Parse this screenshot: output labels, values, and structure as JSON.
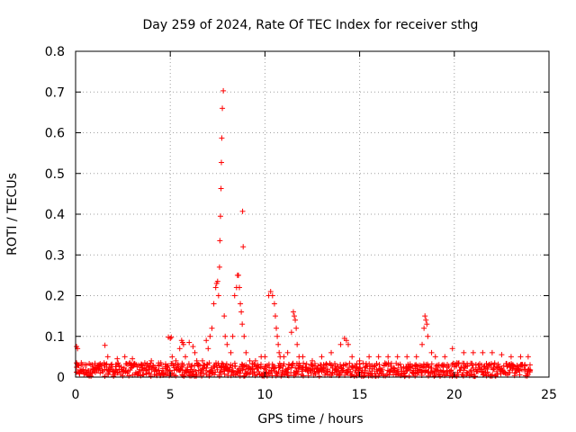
{
  "chart_data": {
    "type": "scatter",
    "title": "Day 259 of 2024, Rate Of TEC Index for receiver sthg",
    "xlabel": "GPS time / hours",
    "ylabel": "ROTI / TECUs",
    "xlim": [
      0,
      25
    ],
    "ylim": [
      0,
      0.8
    ],
    "x_ticks": [
      "0",
      "5",
      "10",
      "15",
      "20",
      "25"
    ],
    "y_ticks": [
      "0",
      "0.1",
      "0.2",
      "0.3",
      "0.4",
      "0.5",
      "0.6",
      "0.7",
      "0.8"
    ],
    "grid": true,
    "marker": "plus",
    "color": "#ff0000",
    "series": [
      {
        "x": [
          0.05,
          0.1,
          0.3,
          0.8,
          1.2,
          1.55,
          1.7,
          2.2,
          2.6,
          3.0,
          3.5,
          4.0,
          4.5,
          4.9,
          5.0,
          5.05,
          5.1,
          5.3,
          5.5,
          5.6,
          5.65,
          5.7,
          5.8,
          6.0,
          6.2,
          6.3,
          6.4,
          6.7,
          6.9,
          7.0,
          7.1,
          7.2,
          7.3,
          7.4,
          7.45,
          7.5,
          7.55,
          7.6,
          7.62,
          7.65,
          7.68,
          7.7,
          7.72,
          7.75,
          7.8,
          7.85,
          7.9,
          8.0,
          8.2,
          8.3,
          8.4,
          8.5,
          8.55,
          8.6,
          8.65,
          8.7,
          8.75,
          8.8,
          8.82,
          8.85,
          8.9,
          9.0,
          9.2,
          9.5,
          9.8,
          10.0,
          10.2,
          10.3,
          10.4,
          10.5,
          10.55,
          10.6,
          10.65,
          10.7,
          10.75,
          10.8,
          11.0,
          11.2,
          11.4,
          11.5,
          11.55,
          11.6,
          11.65,
          11.7,
          11.8,
          12.0,
          12.5,
          13.0,
          13.5,
          14.0,
          14.2,
          14.3,
          14.4,
          14.6,
          15.0,
          15.5,
          16.0,
          16.5,
          17.0,
          17.5,
          18.0,
          18.3,
          18.4,
          18.45,
          18.5,
          18.55,
          18.6,
          18.8,
          19.0,
          19.5,
          19.9,
          20.5,
          21.0,
          21.5,
          22.0,
          22.5,
          23.0,
          23.5,
          23.9,
          24.0
        ],
        "y": [
          0.075,
          0.07,
          0.035,
          0.03,
          0.03,
          0.078,
          0.05,
          0.045,
          0.05,
          0.045,
          0.03,
          0.04,
          0.035,
          0.098,
          0.095,
          0.098,
          0.05,
          0.04,
          0.07,
          0.09,
          0.085,
          0.08,
          0.05,
          0.085,
          0.075,
          0.06,
          0.04,
          0.04,
          0.09,
          0.07,
          0.1,
          0.12,
          0.18,
          0.22,
          0.23,
          0.235,
          0.2,
          0.27,
          0.335,
          0.395,
          0.463,
          0.527,
          0.587,
          0.66,
          0.703,
          0.15,
          0.1,
          0.08,
          0.06,
          0.1,
          0.2,
          0.22,
          0.25,
          0.25,
          0.22,
          0.18,
          0.16,
          0.13,
          0.407,
          0.32,
          0.1,
          0.06,
          0.04,
          0.04,
          0.05,
          0.05,
          0.2,
          0.21,
          0.2,
          0.18,
          0.15,
          0.12,
          0.1,
          0.08,
          0.06,
          0.05,
          0.05,
          0.06,
          0.11,
          0.16,
          0.15,
          0.14,
          0.12,
          0.08,
          0.05,
          0.05,
          0.04,
          0.05,
          0.06,
          0.08,
          0.095,
          0.09,
          0.08,
          0.05,
          0.04,
          0.05,
          0.05,
          0.05,
          0.05,
          0.05,
          0.05,
          0.08,
          0.12,
          0.15,
          0.14,
          0.13,
          0.1,
          0.06,
          0.05,
          0.05,
          0.07,
          0.06,
          0.06,
          0.06,
          0.06,
          0.055,
          0.05,
          0.05,
          0.05,
          0.03
        ]
      }
    ]
  }
}
